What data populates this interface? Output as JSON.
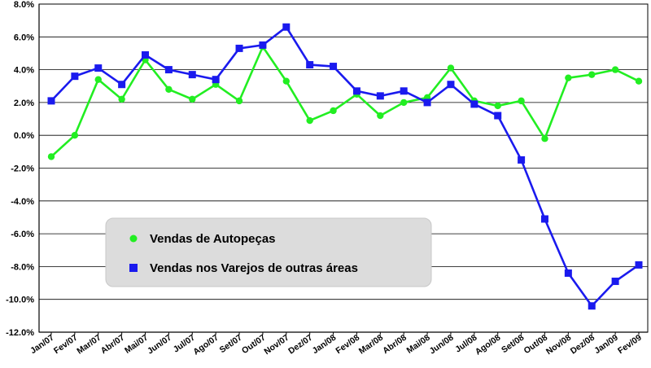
{
  "chart_data": {
    "type": "line",
    "categories": [
      "Jan/07",
      "Fev/07",
      "Mar/07",
      "Abr/07",
      "Mai/07",
      "Jun/07",
      "Jul/07",
      "Ago/07",
      "Set/07",
      "Out/07",
      "Nov/07",
      "Dez/07",
      "Jan/08",
      "Fev/08",
      "Mar/08",
      "Abr/08",
      "Mai/08",
      "Jun/08",
      "Jul/08",
      "Ago/08",
      "Set/08",
      "Out/08",
      "Nov/08",
      "Dez/08",
      "Jan/09",
      "Fev/09"
    ],
    "series": [
      {
        "name": "Vendas de Autopeças",
        "color": "#22ee22",
        "marker": "circle",
        "values": [
          -1.3,
          0.0,
          3.4,
          2.2,
          4.6,
          2.8,
          2.2,
          3.1,
          2.1,
          5.4,
          3.3,
          0.9,
          1.5,
          2.5,
          1.2,
          2.0,
          2.3,
          4.1,
          2.1,
          1.8,
          2.1,
          -0.2,
          3.5,
          3.7,
          4.0,
          3.3
        ]
      },
      {
        "name": "Vendas nos Varejos de outras áreas",
        "color": "#1a1aee",
        "marker": "square",
        "values": [
          2.1,
          3.6,
          4.1,
          3.1,
          4.9,
          4.0,
          3.7,
          3.4,
          5.3,
          5.5,
          6.6,
          4.3,
          4.2,
          2.7,
          2.4,
          2.7,
          2.0,
          3.1,
          1.9,
          1.2,
          -1.5,
          -5.1,
          -8.4,
          -10.4,
          -8.9,
          -7.9
        ]
      }
    ],
    "y_ticks": [
      "8.0%",
      "6.0%",
      "4.0%",
      "2.0%",
      "0.0%",
      "-2.0%",
      "-4.0%",
      "-6.0%",
      "-8.0%",
      "-10.0%",
      "-12.0%"
    ],
    "ylim": [
      -12,
      8
    ],
    "grid": true,
    "legend_position": "lower-left",
    "title": "",
    "xlabel": "",
    "ylabel": ""
  }
}
